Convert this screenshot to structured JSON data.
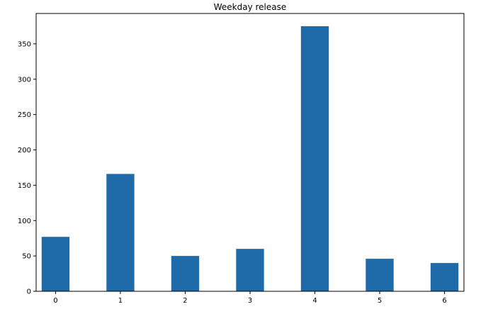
{
  "chart_data": {
    "type": "bar",
    "title": "Weekday release",
    "xlabel": "",
    "ylabel": "",
    "x": [
      0,
      1,
      2,
      3,
      4,
      5,
      6
    ],
    "values": [
      77,
      166,
      50,
      60,
      375,
      46,
      40
    ],
    "xlim": [
      -0.3,
      6.3
    ],
    "ylim": [
      0,
      393
    ],
    "xticks": [
      0,
      1,
      2,
      3,
      4,
      5,
      6
    ],
    "yticks": [
      0,
      50,
      100,
      150,
      200,
      250,
      300,
      350
    ],
    "bar_color": "#1f6aa9",
    "grid": false
  }
}
